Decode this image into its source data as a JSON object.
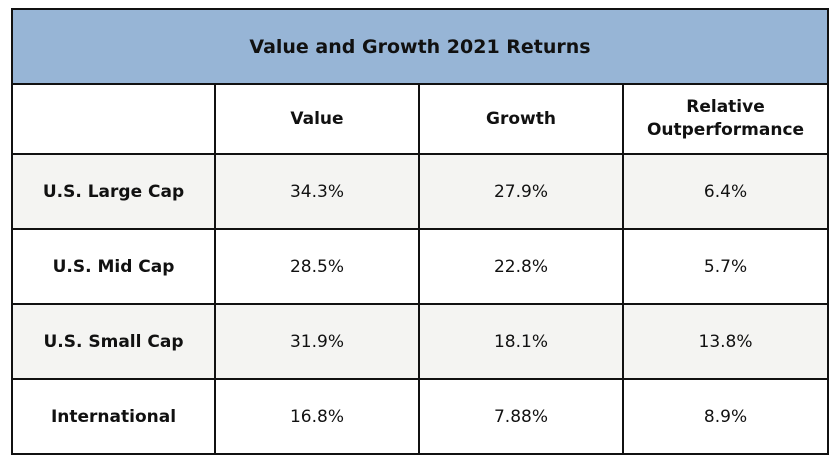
{
  "colors": {
    "title_background": "#97b5d6",
    "header_background": "#ffffff",
    "row_alt_background": "#f4f4f2",
    "row_background": "#ffffff",
    "border": "#111111"
  },
  "chart_data": {
    "type": "table",
    "title": "Value and Growth 2021 Returns",
    "columns": [
      {
        "key": "category",
        "label_lines": [
          ""
        ]
      },
      {
        "key": "value",
        "label_lines": [
          "Value"
        ]
      },
      {
        "key": "growth",
        "label_lines": [
          "Growth"
        ]
      },
      {
        "key": "relative",
        "label_lines": [
          "Relative",
          "Outperformance"
        ]
      }
    ],
    "rows": [
      {
        "category": "U.S. Large Cap",
        "value": "34.3%",
        "growth": "27.9%",
        "relative": "6.4%"
      },
      {
        "category": "U.S. Mid Cap",
        "value": "28.5%",
        "growth": "22.8%",
        "relative": "5.7%"
      },
      {
        "category": "U.S. Small Cap",
        "value": "31.9%",
        "growth": "18.1%",
        "relative": "13.8%"
      },
      {
        "category": "International",
        "value": "16.8%",
        "growth": "7.88%",
        "relative": "8.9%"
      }
    ]
  }
}
